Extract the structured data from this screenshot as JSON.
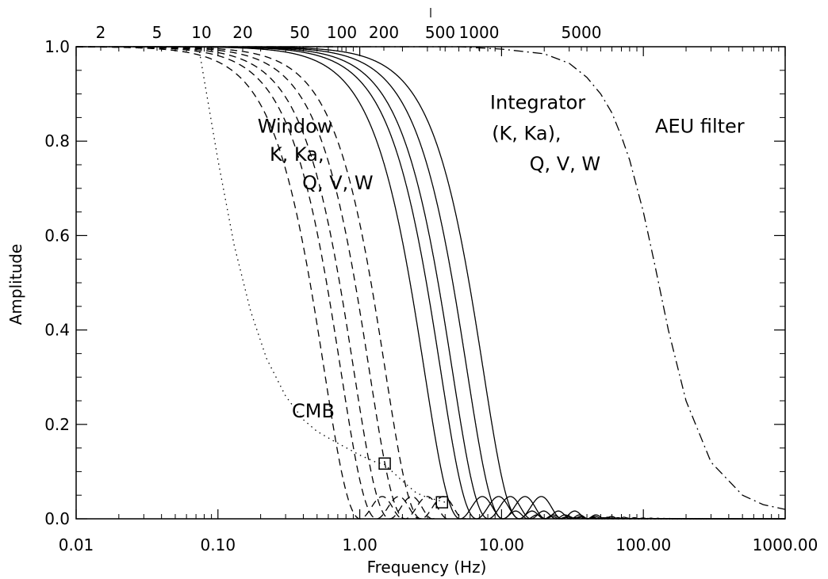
{
  "chart_data": {
    "type": "line",
    "xlabel": "Frequency (Hz)",
    "ylabel": "Amplitude",
    "xscale": "log",
    "xlim": [
      0.01,
      1000
    ],
    "ylim": [
      0.0,
      1.0
    ],
    "x_ticks": [
      "0.01",
      "0.10",
      "1.00",
      "10.00",
      "100.00",
      "1000.00"
    ],
    "y_ticks": [
      "0.0",
      "0.2",
      "0.4",
      "0.6",
      "0.8",
      "1.0"
    ],
    "top_axis_ticks": [
      "2",
      "5",
      "10",
      "20",
      "50",
      "100",
      "200",
      "500",
      "1000",
      "5000"
    ],
    "grid": false,
    "colors": {
      "line": "#000000",
      "background": "#ffffff"
    },
    "annotations": [
      {
        "text": "Window",
        "x": 0.35,
        "y": 0.818
      },
      {
        "text": "K, Ka,",
        "x": 0.36,
        "y": 0.758
      },
      {
        "text": "Q, V, W",
        "x": 0.7,
        "y": 0.698
      },
      {
        "text": "Integrator",
        "x": 18.0,
        "y": 0.868
      },
      {
        "text": "(K, Ka),",
        "x": 15.0,
        "y": 0.803
      },
      {
        "text": "Q, V, W",
        "x": 28.0,
        "y": 0.738
      },
      {
        "text": "AEU filter",
        "x": 250.0,
        "y": 0.818
      },
      {
        "text": "CMB",
        "x": 0.47,
        "y": 0.215
      }
    ],
    "series": [
      {
        "style": "dotted",
        "x": [
          0.073,
          0.08,
          0.1,
          0.13,
          0.17,
          0.22,
          0.3,
          0.4,
          0.5,
          0.7,
          1.0,
          1.3,
          1.5,
          2.0,
          2.5,
          3.0,
          3.5,
          4.0
        ],
        "y": [
          1.0,
          0.93,
          0.76,
          0.58,
          0.44,
          0.34,
          0.26,
          0.21,
          0.185,
          0.16,
          0.135,
          0.12,
          0.115,
          0.08,
          0.055,
          0.045,
          0.04,
          0.035
        ]
      },
      {
        "style": "dashed",
        "f0": 0.65
      },
      {
        "style": "dashed",
        "f0": 0.85
      },
      {
        "style": "dashed",
        "f0": 1.05
      },
      {
        "style": "dashed",
        "f0": 1.35
      },
      {
        "style": "dashed",
        "f0": 1.75
      },
      {
        "style": "solid",
        "f0": 3.3
      },
      {
        "style": "solid",
        "f0": 4.3
      },
      {
        "style": "solid",
        "f0": 5.2
      },
      {
        "style": "solid",
        "f0": 6.6
      },
      {
        "style": "solid",
        "f0": 8.6
      },
      {
        "style": "dash-dot",
        "x": [
          0.01,
          1,
          5,
          10,
          20,
          30,
          40,
          50,
          60,
          70,
          80,
          100,
          120,
          150,
          200,
          300,
          500,
          700,
          1000
        ],
        "y": [
          1.0,
          1.0,
          1.0,
          0.995,
          0.985,
          0.965,
          0.935,
          0.9,
          0.86,
          0.81,
          0.76,
          0.65,
          0.54,
          0.4,
          0.25,
          0.12,
          0.05,
          0.03,
          0.02
        ]
      }
    ],
    "markers": [
      {
        "shape": "square",
        "x": 1.5,
        "y": 0.117
      },
      {
        "shape": "square",
        "x": 3.8,
        "y": 0.035
      }
    ]
  }
}
